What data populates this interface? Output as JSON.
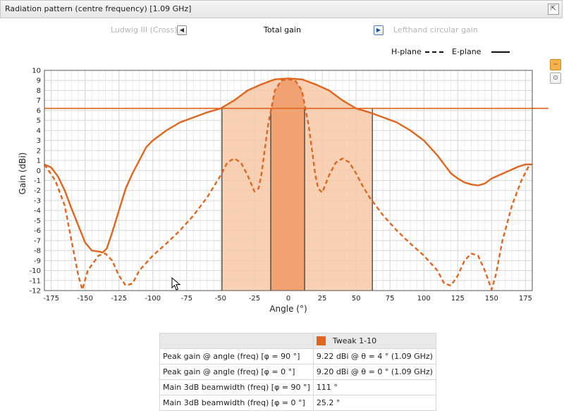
{
  "window": {
    "title": "Radiation pattern (centre frequency) [1.09 GHz]",
    "pin_icon": "pin-icon"
  },
  "nav": {
    "prev_label": "Ludwig III (Cross)",
    "current_label": "Total gain",
    "next_label": "Lefthand circular gain"
  },
  "legend": {
    "h_plane": "H-plane",
    "e_plane": "E-plane"
  },
  "chart_data": {
    "type": "line",
    "title": "",
    "xlabel": "Angle (°)",
    "ylabel": "Gain (dBi)",
    "xlim": [
      -180,
      180
    ],
    "ylim": [
      -12,
      10
    ],
    "xticks": [
      -175,
      -150,
      -125,
      -100,
      -75,
      -50,
      -25,
      0,
      25,
      50,
      75,
      100,
      125,
      150,
      175
    ],
    "yticks": [
      10,
      9,
      8,
      7,
      6,
      5,
      4,
      3,
      2,
      1,
      0,
      -1,
      -2,
      -3,
      -4,
      -5,
      -6,
      -7,
      -8,
      -9,
      -10,
      -11,
      -12
    ],
    "grid": true,
    "threshold": 6.2,
    "h_plane_beam": [
      -49,
      62
    ],
    "e_plane_beam": [
      -13,
      12
    ],
    "colors": {
      "line": "#e0661d",
      "fill_wide": "#f7c9a8",
      "fill_narrow": "#ee9c6b"
    },
    "series": [
      {
        "name": "H-plane",
        "style": "dashed",
        "x": [
          -180,
          -172,
          -165,
          -160,
          -155,
          -152,
          -148,
          -140,
          -135,
          -130,
          -125,
          -120,
          -115,
          -110,
          -100,
          -90,
          -80,
          -70,
          -60,
          -50,
          -45,
          -40,
          -35,
          -30,
          -25,
          -22,
          -20,
          -15,
          -10,
          -5,
          0,
          5,
          10,
          15,
          20,
          22,
          25,
          30,
          35,
          40,
          45,
          50,
          55,
          60,
          70,
          80,
          90,
          100,
          110,
          115,
          120,
          125,
          130,
          135,
          140,
          145,
          150,
          153,
          158,
          165,
          172,
          178,
          180
        ],
        "y": [
          0.6,
          -1,
          -3.5,
          -7,
          -10.5,
          -11.9,
          -10,
          -8.5,
          -8.3,
          -9,
          -10.5,
          -11.5,
          -11.3,
          -10,
          -8.5,
          -7.3,
          -6,
          -4.5,
          -2.7,
          -0.5,
          0.8,
          1.2,
          0.8,
          -0.5,
          -2.1,
          -1.8,
          -0.5,
          4.5,
          8,
          9,
          9.1,
          9,
          8,
          4.5,
          -0.5,
          -1.8,
          -2.2,
          -0.5,
          0.8,
          1.2,
          0.8,
          -0.3,
          -1.6,
          -2.7,
          -4.5,
          -6,
          -7.3,
          -8.5,
          -10,
          -11.3,
          -11.5,
          -10.5,
          -9,
          -8.3,
          -8.5,
          -10,
          -11.9,
          -10.5,
          -7,
          -3.5,
          -1,
          0.6,
          0.6
        ]
      },
      {
        "name": "E-plane",
        "style": "solid",
        "x": [
          -180,
          -175,
          -170,
          -165,
          -160,
          -155,
          -150,
          -145,
          -140,
          -137,
          -134,
          -130,
          -125,
          -120,
          -115,
          -110,
          -105,
          -100,
          -95,
          -90,
          -80,
          -70,
          -60,
          -50,
          -40,
          -30,
          -20,
          -10,
          0,
          10,
          20,
          30,
          40,
          50,
          60,
          70,
          80,
          90,
          100,
          110,
          120,
          125,
          130,
          135,
          140,
          145,
          150,
          160,
          170,
          175,
          180
        ],
        "y": [
          0.6,
          0.3,
          -0.6,
          -2,
          -3.8,
          -5.5,
          -7.2,
          -8,
          -8.1,
          -8.2,
          -7.8,
          -6.2,
          -4,
          -1.8,
          -0.3,
          1,
          2.3,
          3,
          3.5,
          4,
          4.8,
          5.3,
          5.8,
          6.2,
          7,
          8,
          8.6,
          9.1,
          9.2,
          9.1,
          8.6,
          8,
          7,
          6.2,
          5.8,
          5.3,
          4.8,
          4,
          3,
          1.5,
          -0.3,
          -0.8,
          -1.2,
          -1.4,
          -1.5,
          -1.3,
          -0.8,
          -0.2,
          0.4,
          0.6,
          0.6
        ]
      }
    ]
  },
  "summary": {
    "header_label": "Tweak 1-10",
    "swatch_color": "#e0661d",
    "rows": [
      {
        "label": "Peak gain @ angle (freq) [φ = 90 °]",
        "value": "9.22 dBi @ θ = 4 ° (1.09 GHz)"
      },
      {
        "label": "Peak gain @ angle (freq) [φ = 0 °]",
        "value": "9.20 dBi @ θ = 0 ° (1.09 GHz)"
      },
      {
        "label": "Main 3dB beamwidth (freq) [φ = 90 °]",
        "value": "111 °"
      },
      {
        "label": "Main 3dB beamwidth (freq) [φ = 0 °]",
        "value": "25.2 °"
      }
    ]
  },
  "toolbar": {
    "chart_icon": "line-chart-icon",
    "export_icon": "download-icon"
  }
}
